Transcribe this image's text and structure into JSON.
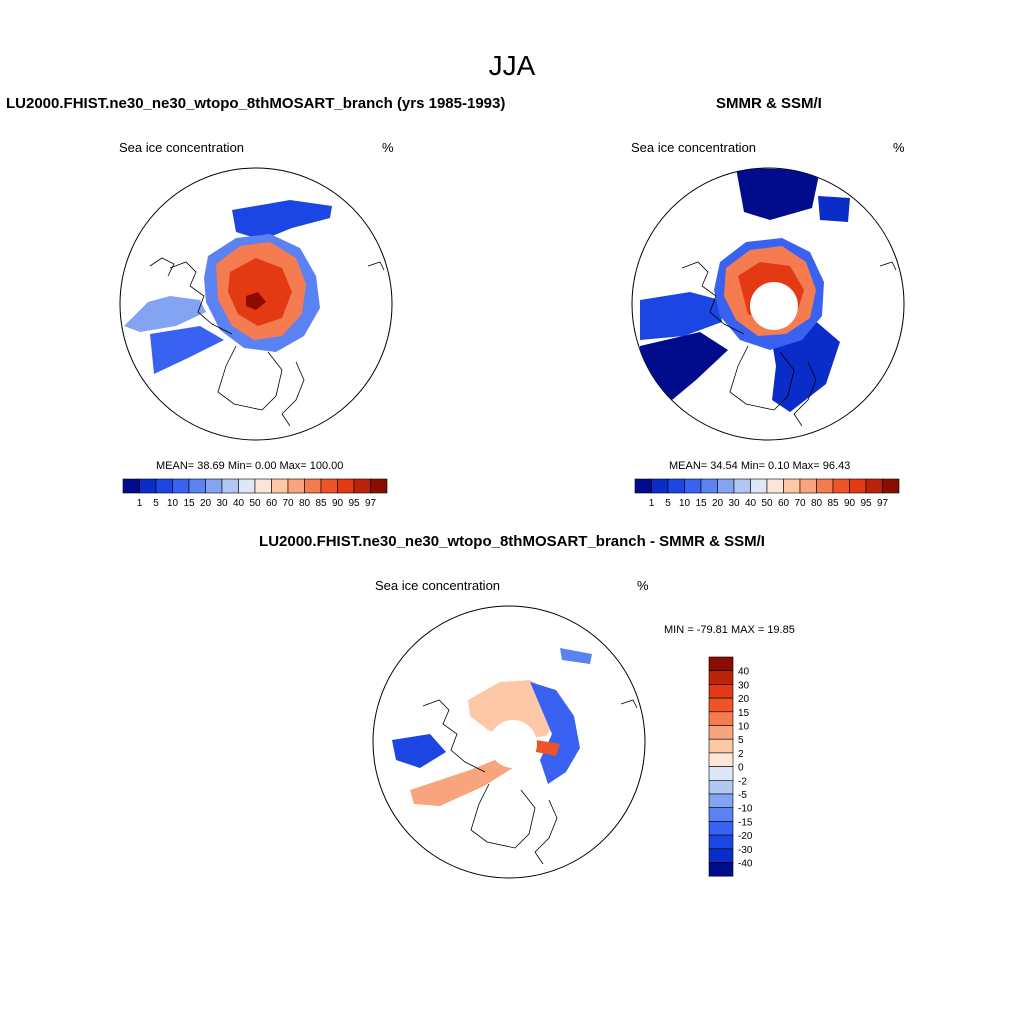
{
  "figure": {
    "title": "JJA"
  },
  "panels": [
    {
      "id": "model",
      "title": "LU2000.FHIST.ne30_ne30_wtopo_8thMOSART_branch (yrs 1985-1993)",
      "variable": "Sea ice concentration",
      "units": "%",
      "stats": "MEAN=  38.69  Min=   0.00  Max= 100.00",
      "colorbar_labels": [
        "1",
        "5",
        "10",
        "15",
        "20",
        "30",
        "40",
        "50",
        "60",
        "70",
        "80",
        "85",
        "90",
        "95",
        "97"
      ]
    },
    {
      "id": "obs",
      "title": "SMMR & SSM/I",
      "variable": "Sea ice concentration",
      "units": "%",
      "stats": "MEAN=  34.54  Min=   0.10  Max=  96.43",
      "colorbar_labels": [
        "1",
        "5",
        "10",
        "15",
        "20",
        "30",
        "40",
        "50",
        "60",
        "70",
        "80",
        "85",
        "90",
        "95",
        "97"
      ]
    },
    {
      "id": "diff",
      "title": "LU2000.FHIST.ne30_ne30_wtopo_8thMOSART_branch - SMMR & SSM/I",
      "variable": "Sea ice concentration",
      "units": "%",
      "stats": "MIN = -79.81 MAX =  19.85",
      "colorbar_labels": [
        "40",
        "30",
        "20",
        "15",
        "10",
        "5",
        "2",
        "0",
        "-2",
        "-5",
        "-10",
        "-15",
        "-20",
        "-30",
        "-40"
      ]
    }
  ],
  "colors": {
    "abs_scale": [
      "#000c8c",
      "#0a2cc8",
      "#1c46e4",
      "#3a62f2",
      "#5a82f2",
      "#82a4f2",
      "#b0c8f2",
      "#dce8f8",
      "#fde6d8",
      "#fcc8a8",
      "#f8a47c",
      "#f47c50",
      "#ee5426",
      "#e43a14",
      "#bc2408",
      "#8c0c04"
    ],
    "diff_scale": [
      "#8c0c04",
      "#bc2408",
      "#e43a14",
      "#ee5426",
      "#f47c50",
      "#f8a47c",
      "#fcc8a8",
      "#fde6d8",
      "#dce8f8",
      "#b0c8f2",
      "#82a4f2",
      "#5a82f2",
      "#3a62f2",
      "#1c46e4",
      "#0a2cc8",
      "#000c8c"
    ]
  }
}
